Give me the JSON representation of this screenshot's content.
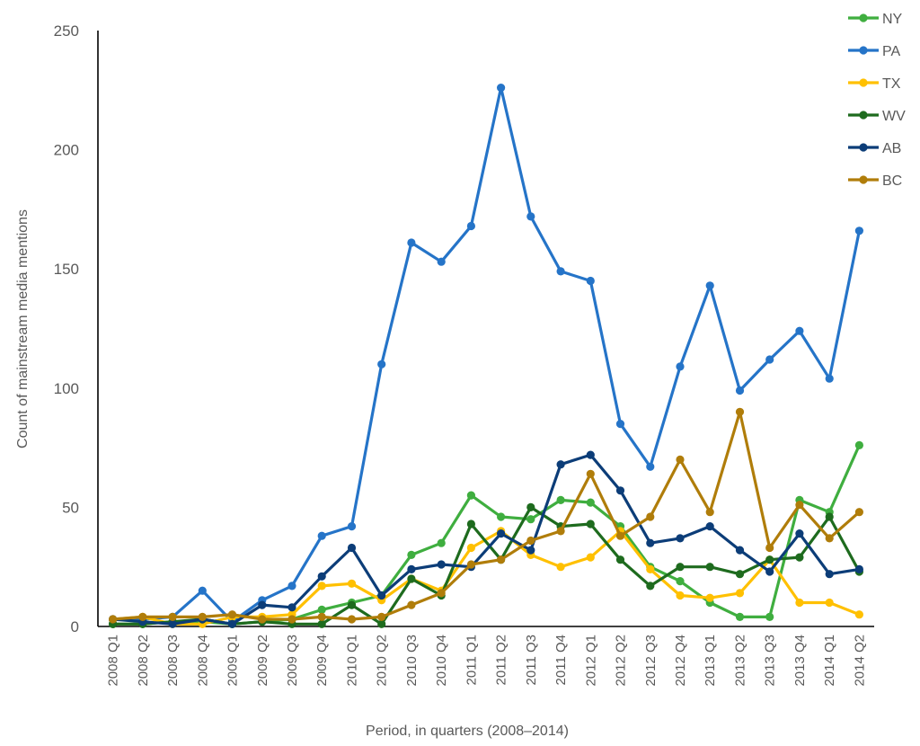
{
  "chart_data": {
    "type": "line",
    "title": "",
    "xlabel": "Period, in quarters (2008–2014)",
    "ylabel": "Count of mainstream media mentions",
    "ylim": [
      0,
      250
    ],
    "yticks": [
      0,
      50,
      100,
      150,
      200,
      250
    ],
    "grid": false,
    "legend_position": "top-right",
    "categories": [
      "2008 Q1",
      "2008 Q2",
      "2008 Q3",
      "2008 Q4",
      "2009 Q1",
      "2009 Q2",
      "2009 Q3",
      "2009 Q4",
      "2010 Q1",
      "2010 Q2",
      "2010 Q3",
      "2010 Q4",
      "2011 Q1",
      "2011 Q2",
      "2011 Q3",
      "2011 Q4",
      "2012 Q1",
      "2012 Q2",
      "2012 Q3",
      "2012 Q4",
      "2013 Q1",
      "2013 Q2",
      "2013 Q3",
      "2013 Q4",
      "2014 Q1",
      "2014 Q2"
    ],
    "series": [
      {
        "name": "NY",
        "color": "#3FAE3F",
        "values": [
          1,
          1,
          2,
          2,
          1,
          2,
          3,
          7,
          10,
          13,
          30,
          35,
          55,
          46,
          45,
          53,
          52,
          42,
          25,
          19,
          10,
          4,
          4,
          53,
          48,
          76
        ]
      },
      {
        "name": "PA",
        "color": "#2574C8",
        "values": [
          3,
          3,
          4,
          15,
          2,
          11,
          17,
          38,
          42,
          110,
          161,
          153,
          168,
          226,
          172,
          149,
          145,
          85,
          67,
          109,
          143,
          99,
          112,
          124,
          104,
          166
        ]
      },
      {
        "name": "TX",
        "color": "#FFC000",
        "values": [
          3,
          4,
          1,
          1,
          4,
          4,
          5,
          17,
          18,
          11,
          20,
          15,
          33,
          40,
          30,
          25,
          29,
          40,
          24,
          13,
          12,
          14,
          28,
          10,
          10,
          5
        ]
      },
      {
        "name": "WV",
        "color": "#1E6B1E",
        "values": [
          1,
          1,
          2,
          3,
          1,
          2,
          1,
          1,
          9,
          1,
          20,
          13,
          43,
          28,
          50,
          42,
          43,
          28,
          17,
          25,
          25,
          22,
          28,
          29,
          46,
          23
        ]
      },
      {
        "name": "AB",
        "color": "#0C3D78",
        "values": [
          3,
          2,
          1,
          3,
          1,
          9,
          8,
          21,
          33,
          13,
          24,
          26,
          25,
          39,
          32,
          68,
          72,
          57,
          35,
          37,
          42,
          32,
          23,
          39,
          22,
          24
        ]
      },
      {
        "name": "BC",
        "color": "#B07D0A",
        "values": [
          3,
          4,
          4,
          4,
          5,
          3,
          3,
          4,
          3,
          4,
          9,
          14,
          26,
          28,
          36,
          40,
          64,
          38,
          46,
          70,
          48,
          90,
          33,
          51,
          37,
          48
        ]
      }
    ]
  }
}
